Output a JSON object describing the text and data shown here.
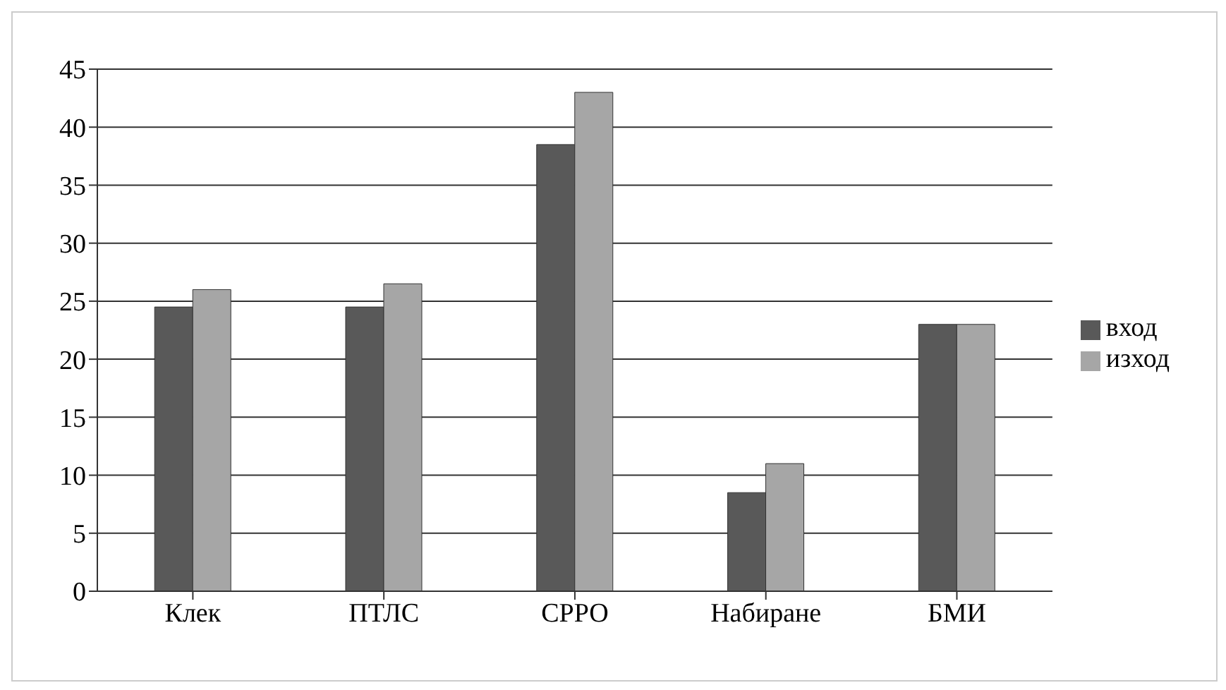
{
  "chart_data": {
    "type": "bar",
    "categories": [
      "Клек",
      "ПТЛС",
      "СРРО",
      "Набиране",
      "БМИ"
    ],
    "series": [
      {
        "name": "вход",
        "color": "#595959",
        "values": [
          24.5,
          24.5,
          38.5,
          8.5,
          23
        ]
      },
      {
        "name": "изход",
        "color": "#a6a6a6",
        "values": [
          26,
          26.5,
          43,
          11,
          23
        ]
      }
    ],
    "ylim": [
      0,
      45
    ],
    "yticks": [
      0,
      5,
      10,
      15,
      20,
      25,
      30,
      35,
      40,
      45
    ],
    "grid": "y",
    "legend": "right"
  }
}
